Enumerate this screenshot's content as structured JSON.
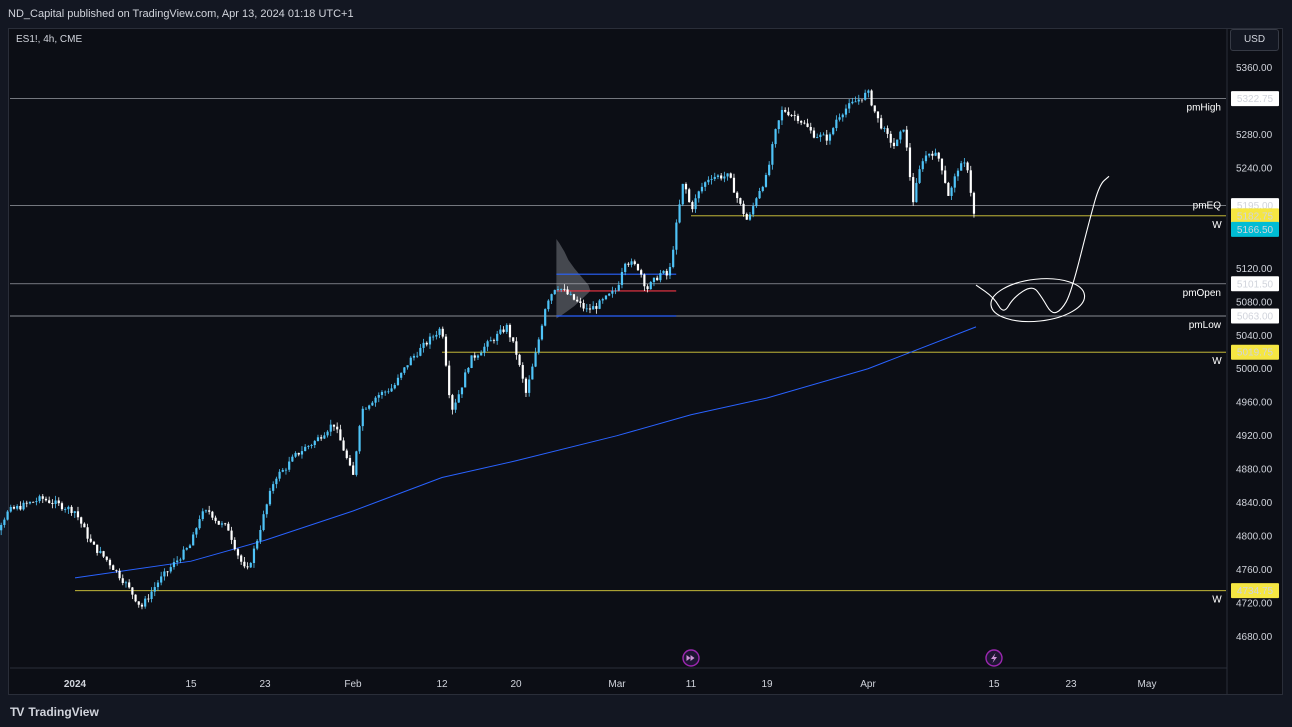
{
  "header": {
    "published_text": "ND_Capital published on TradingView.com, Apr 13, 2024 01:18 UTC+1"
  },
  "symbol_info": "ES1!, 4h, CME",
  "currency_button": "USD",
  "footer": {
    "brand": "TradingView",
    "logo_glyph": "TV"
  },
  "colors": {
    "background": "#0c0e15",
    "candle_up": "#4fc3f7",
    "candle_down": "#ffffff",
    "ma_line": "#2962ff",
    "level_line": "#d1d4dc",
    "weekly_line": "#f5e642",
    "price_tag_current": "#00bcd4",
    "price_tag_weekly": "#f5e642"
  },
  "chart_data": {
    "type": "candlestick",
    "symbol": "ES1!",
    "timeframe": "4h",
    "exchange": "CME",
    "currency": "USD",
    "grid": false,
    "ylim": [
      4650,
      5380
    ],
    "y_ticks": [
      "5360.00",
      "5280.00",
      "5240.00",
      "5120.00",
      "5080.00",
      "5040.00",
      "5000.00",
      "4960.00",
      "4920.00",
      "4880.00",
      "4840.00",
      "4800.00",
      "4760.00",
      "4720.00",
      "4680.00"
    ],
    "x_ticks": [
      "2024",
      "15",
      "23",
      "Feb",
      "12",
      "20",
      "Mar",
      "11",
      "19",
      "Apr",
      "15",
      "23",
      "May"
    ],
    "x_tick_dates": [
      "2024-01-08",
      "2024-01-15",
      "2024-01-23",
      "2024-02-01",
      "2024-02-12",
      "2024-02-20",
      "2024-03-01",
      "2024-03-11",
      "2024-03-19",
      "2024-04-01",
      "2024-04-15",
      "2024-04-23",
      "2024-05-01"
    ],
    "price_path": [
      [
        "2024-01-02",
        4770
      ],
      [
        "2024-01-04",
        4830
      ],
      [
        "2024-01-06",
        4845
      ],
      [
        "2024-01-08",
        4830
      ],
      [
        "2024-01-09",
        4790
      ],
      [
        "2024-01-10",
        4770
      ],
      [
        "2024-01-11",
        4745
      ],
      [
        "2024-01-12",
        4715
      ],
      [
        "2024-01-13",
        4745
      ],
      [
        "2024-01-15",
        4790
      ],
      [
        "2024-01-16",
        4825
      ],
      [
        "2024-01-17",
        4830
      ],
      [
        "2024-01-18",
        4815
      ],
      [
        "2024-01-19",
        4810
      ],
      [
        "2024-01-20",
        4780
      ],
      [
        "2024-01-21",
        4755
      ],
      [
        "2024-01-22",
        4790
      ],
      [
        "2024-01-23",
        4830
      ],
      [
        "2024-01-24",
        4870
      ],
      [
        "2024-01-25",
        4880
      ],
      [
        "2024-01-26",
        4895
      ],
      [
        "2024-01-27",
        4905
      ],
      [
        "2024-01-28",
        4912
      ],
      [
        "2024-01-30",
        4935
      ],
      [
        "2024-01-31",
        4905
      ],
      [
        "2024-02-01",
        4870
      ],
      [
        "2024-02-02",
        4950
      ],
      [
        "2024-02-04",
        4968
      ],
      [
        "2024-02-06",
        4978
      ],
      [
        "2024-02-08",
        5010
      ],
      [
        "2024-02-10",
        5030
      ],
      [
        "2024-02-12",
        5050
      ],
      [
        "2024-02-13",
        4950
      ],
      [
        "2024-02-14",
        4975
      ],
      [
        "2024-02-15",
        5010
      ],
      [
        "2024-02-17",
        5030
      ],
      [
        "2024-02-19",
        5050
      ],
      [
        "2024-02-20",
        5020
      ],
      [
        "2024-02-21",
        4970
      ],
      [
        "2024-02-22",
        5020
      ],
      [
        "2024-02-23",
        5080
      ],
      [
        "2024-02-24",
        5100
      ],
      [
        "2024-02-25",
        5090
      ],
      [
        "2024-02-27",
        5070
      ],
      [
        "2024-02-28",
        5075
      ],
      [
        "2024-03-01",
        5095
      ],
      [
        "2024-03-02",
        5130
      ],
      [
        "2024-03-04",
        5120
      ],
      [
        "2024-03-05",
        5095
      ],
      [
        "2024-03-07",
        5115
      ],
      [
        "2024-03-08",
        5110
      ],
      [
        "2024-03-09",
        5170
      ],
      [
        "2024-03-10",
        5225
      ],
      [
        "2024-03-11",
        5190
      ],
      [
        "2024-03-12",
        5215
      ],
      [
        "2024-03-13",
        5230
      ],
      [
        "2024-03-15",
        5230
      ],
      [
        "2024-03-16",
        5200
      ],
      [
        "2024-03-17",
        5175
      ],
      [
        "2024-03-18",
        5210
      ],
      [
        "2024-03-19",
        5230
      ],
      [
        "2024-03-20",
        5280
      ],
      [
        "2024-03-21",
        5310
      ],
      [
        "2024-03-23",
        5300
      ],
      [
        "2024-03-25",
        5280
      ],
      [
        "2024-03-27",
        5275
      ],
      [
        "2024-03-28",
        5300
      ],
      [
        "2024-03-29",
        5310
      ],
      [
        "2024-04-01",
        5330
      ],
      [
        "2024-04-02",
        5300
      ],
      [
        "2024-04-03",
        5280
      ],
      [
        "2024-04-04",
        5265
      ],
      [
        "2024-04-05",
        5290
      ],
      [
        "2024-04-06",
        5200
      ],
      [
        "2024-04-07",
        5250
      ],
      [
        "2024-04-08",
        5260
      ],
      [
        "2024-04-09",
        5250
      ],
      [
        "2024-04-10",
        5205
      ],
      [
        "2024-04-11",
        5240
      ],
      [
        "2024-04-12",
        5245
      ],
      [
        "2024-04-13",
        5166.5
      ]
    ],
    "current_price": "5166.50",
    "moving_average": [
      [
        "2024-01-08",
        4750
      ],
      [
        "2024-01-15",
        4770
      ],
      [
        "2024-01-23",
        4795
      ],
      [
        "2024-02-01",
        4830
      ],
      [
        "2024-02-12",
        4870
      ],
      [
        "2024-02-20",
        4890
      ],
      [
        "2024-03-01",
        4920
      ],
      [
        "2024-03-11",
        4945
      ],
      [
        "2024-03-19",
        4965
      ],
      [
        "2024-04-01",
        5000
      ],
      [
        "2024-04-13",
        5050
      ]
    ],
    "horizontal_levels": [
      {
        "name": "pmHigh",
        "price": "5322.75",
        "style": "level"
      },
      {
        "name": "pmEQ",
        "price": "5195.00",
        "style": "level"
      },
      {
        "name": "",
        "price": "5182.75",
        "style": "weekly",
        "marker": "W"
      },
      {
        "name": "pmOpen",
        "price": "5101.50",
        "style": "level"
      },
      {
        "name": "pmLow",
        "price": "5063.00",
        "style": "level"
      },
      {
        "name": "",
        "price": "5019.75",
        "style": "weekly",
        "marker": "W"
      },
      {
        "name": "",
        "price": "4734.75",
        "style": "weekly",
        "marker": "W"
      }
    ],
    "projection_path": [
      [
        "2024-04-13",
        5100
      ],
      [
        "2024-04-15",
        5085
      ],
      [
        "2024-04-16",
        5065
      ],
      [
        "2024-04-17",
        5085
      ],
      [
        "2024-04-19",
        5100
      ],
      [
        "2024-04-20",
        5085
      ],
      [
        "2024-04-21",
        5065
      ],
      [
        "2024-04-22",
        5070
      ],
      [
        "2024-04-23",
        5090
      ],
      [
        "2024-04-25",
        5180
      ],
      [
        "2024-04-26",
        5220
      ],
      [
        "2024-04-27",
        5230
      ]
    ],
    "volume_profile_box": {
      "from": "2024-02-24",
      "to": "2024-03-09",
      "high": "5113",
      "low": "5063",
      "poc": "5093"
    },
    "events": [
      {
        "date": "2024-03-11",
        "icon": "fast-forward"
      },
      {
        "date": "2024-04-15",
        "icon": "lightning"
      }
    ]
  }
}
